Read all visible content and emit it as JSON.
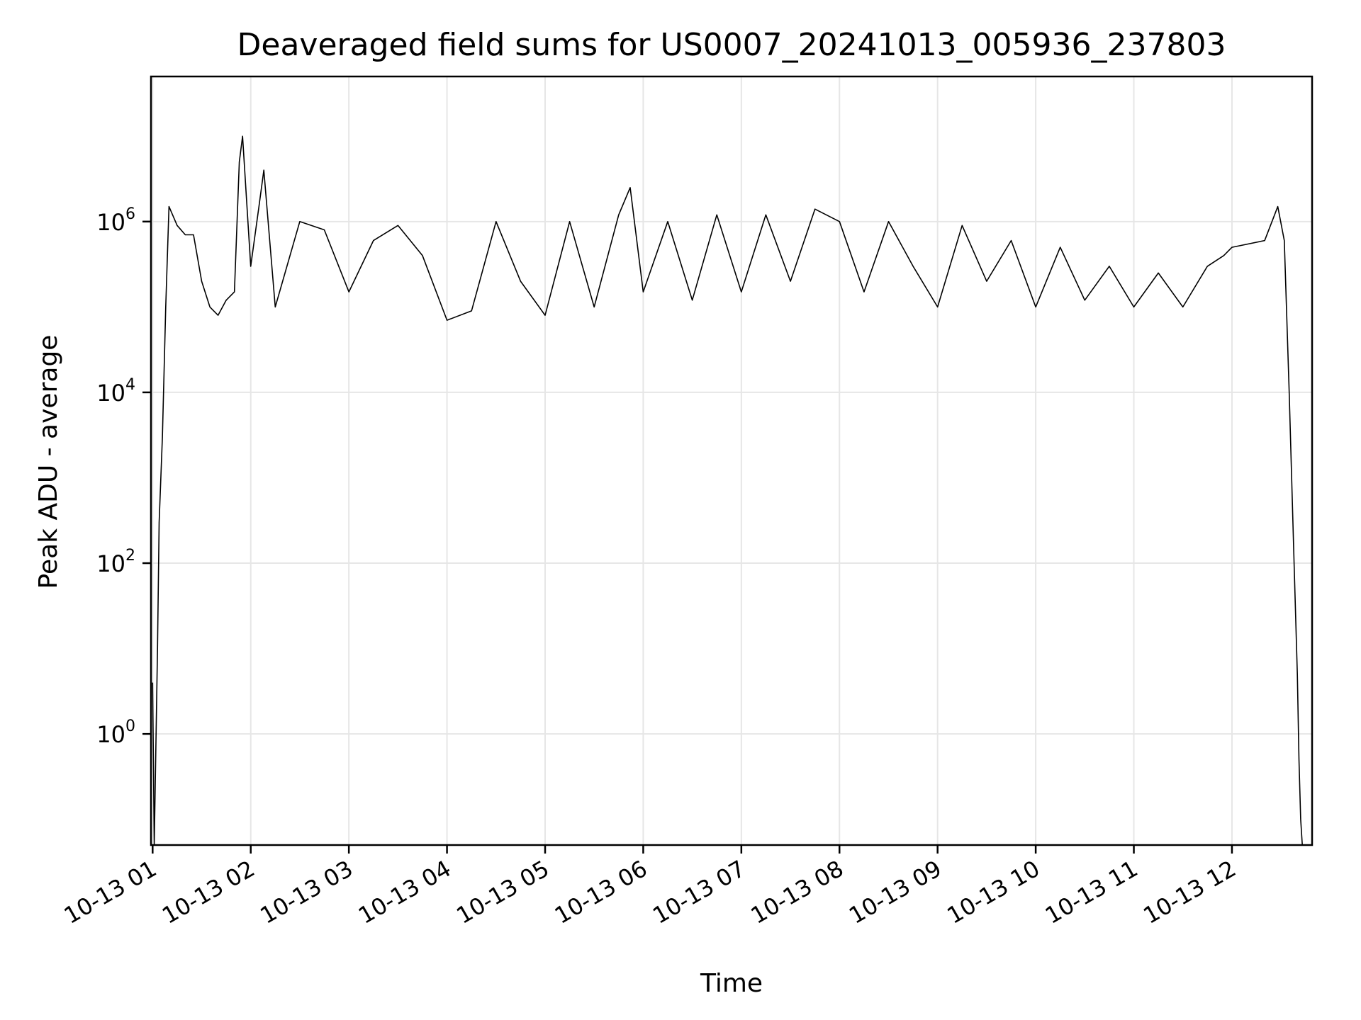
{
  "chart_data": {
    "type": "line",
    "title": "Deaveraged field sums for US0007_20241013_005936_237803",
    "xlabel": "Time",
    "ylabel": "Peak ADU - average",
    "yscale": "log",
    "grid": true,
    "legend": "none",
    "line_color": "#000000",
    "grid_color": "#e6e6e6",
    "xlim": [
      "2024-10-13T00:59",
      "2024-10-13T12:49"
    ],
    "ylim": [
      0.05,
      50000000
    ],
    "x_ticks": [
      {
        "value": "2024-10-13T01:00",
        "label": "10-13 01"
      },
      {
        "value": "2024-10-13T02:00",
        "label": "10-13 02"
      },
      {
        "value": "2024-10-13T03:00",
        "label": "10-13 03"
      },
      {
        "value": "2024-10-13T04:00",
        "label": "10-13 04"
      },
      {
        "value": "2024-10-13T05:00",
        "label": "10-13 05"
      },
      {
        "value": "2024-10-13T06:00",
        "label": "10-13 06"
      },
      {
        "value": "2024-10-13T07:00",
        "label": "10-13 07"
      },
      {
        "value": "2024-10-13T08:00",
        "label": "10-13 08"
      },
      {
        "value": "2024-10-13T09:00",
        "label": "10-13 09"
      },
      {
        "value": "2024-10-13T10:00",
        "label": "10-13 10"
      },
      {
        "value": "2024-10-13T11:00",
        "label": "10-13 11"
      },
      {
        "value": "2024-10-13T12:00",
        "label": "10-13 12"
      }
    ],
    "y_ticks": [
      {
        "value": 1,
        "base": "10",
        "exp": "0"
      },
      {
        "value": 100,
        "base": "10",
        "exp": "2"
      },
      {
        "value": 10000,
        "base": "10",
        "exp": "4"
      },
      {
        "value": 1000000,
        "base": "10",
        "exp": "6"
      }
    ],
    "series": [
      {
        "x": [
          "2024-10-13T01:00",
          "2024-10-13T01:01",
          "2024-10-13T01:03",
          "2024-10-13T01:04",
          "2024-10-13T01:06",
          "2024-10-13T01:08",
          "2024-10-13T01:10",
          "2024-10-13T01:15",
          "2024-10-13T01:20",
          "2024-10-13T01:25",
          "2024-10-13T01:30",
          "2024-10-13T01:35",
          "2024-10-13T01:40",
          "2024-10-13T01:45",
          "2024-10-13T01:50",
          "2024-10-13T01:53",
          "2024-10-13T01:55",
          "2024-10-13T02:00",
          "2024-10-13T02:05",
          "2024-10-13T02:08",
          "2024-10-13T02:15",
          "2024-10-13T02:30",
          "2024-10-13T02:45",
          "2024-10-13T03:00",
          "2024-10-13T03:15",
          "2024-10-13T03:30",
          "2024-10-13T03:45",
          "2024-10-13T04:00",
          "2024-10-13T04:15",
          "2024-10-13T04:30",
          "2024-10-13T04:45",
          "2024-10-13T05:00",
          "2024-10-13T05:15",
          "2024-10-13T05:30",
          "2024-10-13T05:45",
          "2024-10-13T05:52",
          "2024-10-13T06:00",
          "2024-10-13T06:15",
          "2024-10-13T06:30",
          "2024-10-13T06:45",
          "2024-10-13T07:00",
          "2024-10-13T07:15",
          "2024-10-13T07:30",
          "2024-10-13T07:45",
          "2024-10-13T08:00",
          "2024-10-13T08:15",
          "2024-10-13T08:30",
          "2024-10-13T08:45",
          "2024-10-13T09:00",
          "2024-10-13T09:15",
          "2024-10-13T09:30",
          "2024-10-13T09:45",
          "2024-10-13T10:00",
          "2024-10-13T10:15",
          "2024-10-13T10:30",
          "2024-10-13T10:45",
          "2024-10-13T11:00",
          "2024-10-13T11:15",
          "2024-10-13T11:30",
          "2024-10-13T11:45",
          "2024-10-13T11:55",
          "2024-10-13T12:00",
          "2024-10-13T12:20",
          "2024-10-13T12:28",
          "2024-10-13T12:32",
          "2024-10-13T12:35",
          "2024-10-13T12:38",
          "2024-10-13T12:40",
          "2024-10-13T12:41",
          "2024-10-13T12:42",
          "2024-10-13T12:43"
        ],
        "values": [
          4,
          0.05,
          10,
          300,
          3000,
          100000,
          1500000,
          900000,
          700000,
          700000,
          200000,
          100000,
          80000,
          120000,
          150000,
          5000000,
          10000000,
          300000,
          1500000,
          4000000,
          100000,
          1000000,
          800000,
          150000,
          600000,
          900000,
          400000,
          70000,
          90000,
          1000000,
          200000,
          80000,
          1000000,
          100000,
          1200000,
          2500000,
          150000,
          1000000,
          120000,
          1200000,
          150000,
          1200000,
          200000,
          1400000,
          1000000,
          150000,
          1000000,
          300000,
          100000,
          900000,
          200000,
          600000,
          100000,
          500000,
          120000,
          300000,
          100000,
          250000,
          100000,
          300000,
          400000,
          500000,
          600000,
          1500000,
          600000,
          10000,
          100,
          5,
          0.5,
          0.1,
          0.05
        ]
      }
    ]
  }
}
